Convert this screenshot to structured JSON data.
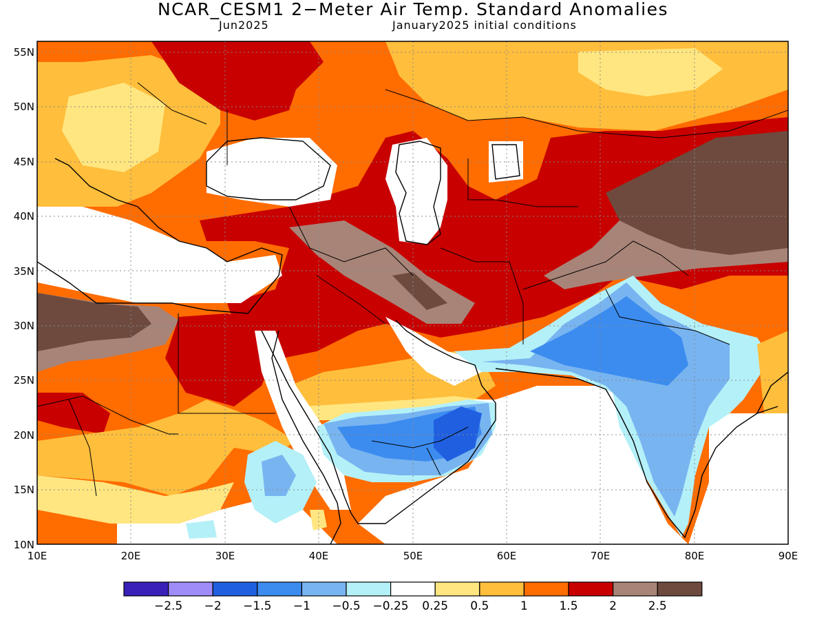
{
  "title": "NCAR_CESM1 2−Meter Air Temp. Standard Anomalies",
  "subtitle_left": "Jun2025",
  "subtitle_right": "January2025 initial conditions",
  "map": {
    "lon_range": [
      10,
      90
    ],
    "lat_range": [
      10,
      56
    ],
    "lon_ticks": [
      "10E",
      "20E",
      "30E",
      "40E",
      "50E",
      "60E",
      "70E",
      "80E",
      "90E"
    ],
    "lat_ticks": [
      "10N",
      "15N",
      "20N",
      "25N",
      "30N",
      "35N",
      "40N",
      "45N",
      "50N",
      "55N"
    ],
    "gridlines": "dotted"
  },
  "colorbar": {
    "colors": [
      "#3a20b8",
      "#a08cf8",
      "#2060e0",
      "#3c8cf0",
      "#78b4f0",
      "#b4f0f8",
      "#ffffff",
      "#ffe680",
      "#ffbe3c",
      "#ff6c00",
      "#c80000",
      "#a88478",
      "#6e4a3e"
    ],
    "labels": [
      "−2.5",
      "−2",
      "−1.5",
      "−1",
      "−0.5",
      "−0.25",
      "0.25",
      "0.5",
      "1",
      "1.5",
      "2",
      "2.5"
    ]
  }
}
